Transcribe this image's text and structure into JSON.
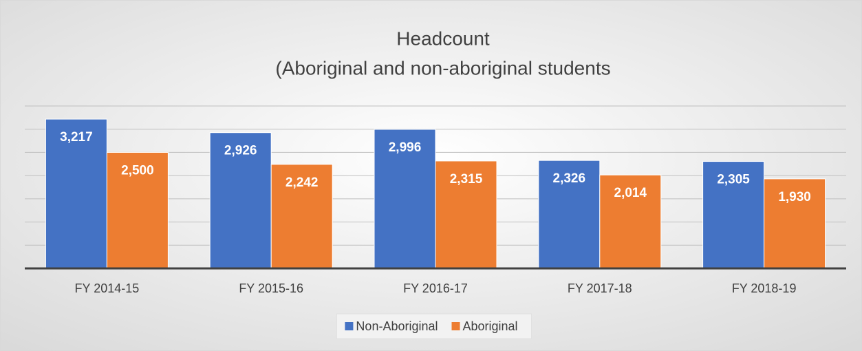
{
  "chart_data": {
    "type": "bar",
    "title": "Headcount",
    "subtitle": "(Aboriginal and non-aboriginal students",
    "categories": [
      "FY 2014-15",
      "FY 2015-16",
      "FY 2016-17",
      "FY 2017-18",
      "FY 2018-19"
    ],
    "series": [
      {
        "name": "Non-Aboriginal",
        "color": "#4472c4",
        "values": [
          3217,
          2926,
          2996,
          2326,
          2305
        ],
        "value_labels": [
          "3,217",
          "2,926",
          "2,996",
          "2,326",
          "2,305"
        ]
      },
      {
        "name": "Aboriginal",
        "color": "#ed7d31",
        "values": [
          2500,
          2242,
          2315,
          2014,
          1930
        ],
        "value_labels": [
          "2,500",
          "2,242",
          "2,315",
          "2,014",
          "1,930"
        ]
      }
    ],
    "ylim": [
      0,
      3500
    ],
    "yticks": [
      0,
      500,
      1000,
      1500,
      2000,
      2500,
      3000,
      3500
    ],
    "grid": true,
    "legend": "bottom"
  }
}
